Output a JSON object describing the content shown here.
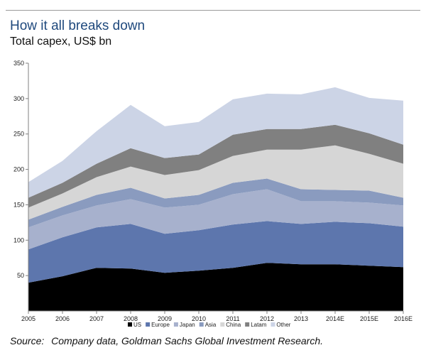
{
  "header": {
    "title": "How it all breaks down",
    "subtitle": "Total capex, US$ bn"
  },
  "footer": {
    "source_label": "Source:",
    "source_text": "Company data, Goldman Sachs Global Investment Research."
  },
  "chart_data": {
    "type": "area",
    "stacked": true,
    "title": "How it all breaks down",
    "subtitle": "Total capex, US$ bn",
    "xlabel": "",
    "ylabel": "",
    "categories": [
      "2005",
      "2006",
      "2007",
      "2008",
      "2009",
      "2010",
      "2011",
      "2012",
      "2013",
      "2014E",
      "2015E",
      "2016E"
    ],
    "ylim": [
      0,
      350
    ],
    "yticks": [
      50,
      100,
      150,
      200,
      250,
      300,
      350
    ],
    "grid": false,
    "legend_position": "bottom",
    "series": [
      {
        "name": "US",
        "color": "#000000",
        "values": [
          40,
          49,
          61,
          60,
          54,
          57,
          61,
          68,
          66,
          66,
          64,
          62
        ]
      },
      {
        "name": "Europe",
        "color": "#5d76ad",
        "values": [
          47,
          55,
          57,
          63,
          55,
          57,
          61,
          59,
          57,
          60,
          60,
          57
        ]
      },
      {
        "name": "Japan",
        "color": "#a7b1cd",
        "values": [
          31,
          31,
          31,
          35,
          37,
          36,
          43,
          45,
          32,
          29,
          29,
          30
        ]
      },
      {
        "name": "Asia",
        "color": "#8a9bbf",
        "values": [
          11,
          12,
          15,
          16,
          13,
          14,
          16,
          15,
          17,
          16,
          17,
          11
        ]
      },
      {
        "name": "China",
        "color": "#d6d6d6",
        "values": [
          17,
          19,
          25,
          30,
          33,
          35,
          38,
          41,
          56,
          63,
          52,
          48
        ]
      },
      {
        "name": "Latam",
        "color": "#808080",
        "values": [
          14,
          15,
          19,
          26,
          24,
          22,
          30,
          29,
          29,
          29,
          29,
          27
        ]
      },
      {
        "name": "Other",
        "color": "#ccd4e6",
        "values": [
          22,
          31,
          46,
          61,
          45,
          46,
          50,
          50,
          49,
          53,
          50,
          62
        ]
      }
    ]
  }
}
